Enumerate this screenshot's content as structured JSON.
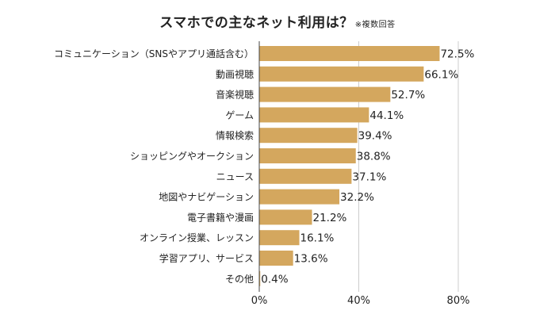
{
  "chart_data": {
    "type": "bar",
    "orientation": "horizontal",
    "title": "スマホでの主なネット利用は？",
    "title_note": "※複数回答",
    "categories": [
      "コミュニケーション（SNSやアプリ通話含む）",
      "動画視聴",
      "音楽視聴",
      "ゲーム",
      "情報検索",
      "ショッピングやオークション",
      "ニュース",
      "地図やナビゲーション",
      "電子書籍や漫画",
      "オンライン授業、レッスン",
      "学習アプリ、サービス",
      "その他"
    ],
    "values": [
      72.5,
      66.1,
      52.7,
      44.1,
      39.4,
      38.8,
      37.1,
      32.2,
      21.2,
      16.1,
      13.6,
      0.4
    ],
    "value_labels": [
      "72.5%",
      "66.1%",
      "52.7%",
      "44.1%",
      "39.4%",
      "38.8%",
      "37.1%",
      "32.2%",
      "21.2%",
      "16.1%",
      "13.6%",
      "0.4%"
    ],
    "xlim": [
      0,
      80
    ],
    "xticks": [
      0,
      40,
      80
    ],
    "xtick_labels": [
      "0%",
      "40%",
      "80%"
    ],
    "grid": true,
    "bar_color": "#D4A75E",
    "grid_color": "#cccccc"
  }
}
